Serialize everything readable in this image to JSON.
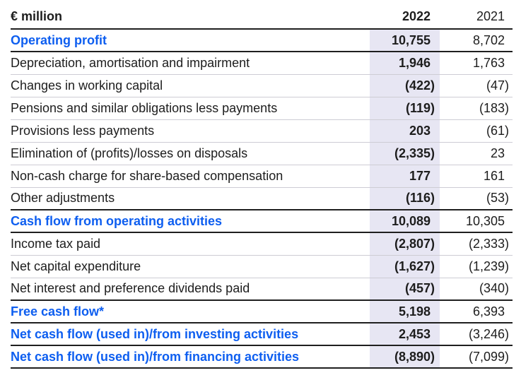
{
  "colors": {
    "accent_blue": "#0d5ef0",
    "highlight_column": "#e7e6f3",
    "rule_dark": "#1f1f1f",
    "rule_light": "#cdccd4",
    "text": "#1d1d1d",
    "page_bg": "#ffffff"
  },
  "table": {
    "unit_header": "€ million",
    "col_2022": "2022",
    "col_2021": "2021",
    "rows": [
      {
        "label": "Operating profit",
        "v2022": "10,755",
        "v2021": "8,702",
        "emphasis": true
      },
      {
        "label": "Depreciation, amortisation and impairment",
        "v2022": "1,946",
        "v2021": "1,763",
        "emphasis": false
      },
      {
        "label": "Changes in working capital",
        "v2022": "(422)",
        "v2021": "(47)",
        "emphasis": false
      },
      {
        "label": "Pensions and similar obligations less payments",
        "v2022": "(119)",
        "v2021": "(183)",
        "emphasis": false
      },
      {
        "label": "Provisions less payments",
        "v2022": "203",
        "v2021": "(61)",
        "emphasis": false
      },
      {
        "label": "Elimination of (profits)/losses on disposals",
        "v2022": "(2,335)",
        "v2021": "23",
        "emphasis": false
      },
      {
        "label": "Non-cash charge for share-based compensation",
        "v2022": "177",
        "v2021": "161",
        "emphasis": false
      },
      {
        "label": "Other adjustments",
        "v2022": "(116)",
        "v2021": "(53)",
        "emphasis": false
      },
      {
        "label": "Cash flow from operating activities",
        "v2022": "10,089",
        "v2021": "10,305",
        "emphasis": true
      },
      {
        "label": "Income tax paid",
        "v2022": "(2,807)",
        "v2021": "(2,333)",
        "emphasis": false
      },
      {
        "label": "Net capital expenditure",
        "v2022": "(1,627)",
        "v2021": "(1,239)",
        "emphasis": false
      },
      {
        "label": "Net interest and preference dividends paid",
        "v2022": "(457)",
        "v2021": "(340)",
        "emphasis": false
      },
      {
        "label": "Free cash flow*",
        "v2022": "5,198",
        "v2021": "6,393",
        "emphasis": true
      },
      {
        "label": "Net cash flow (used in)/from investing activities",
        "v2022": "2,453",
        "v2021": "(3,246)",
        "emphasis": true
      },
      {
        "label": "Net cash flow (used in)/from financing activities",
        "v2022": "(8,890)",
        "v2021": "(7,099)",
        "emphasis": true
      }
    ]
  }
}
